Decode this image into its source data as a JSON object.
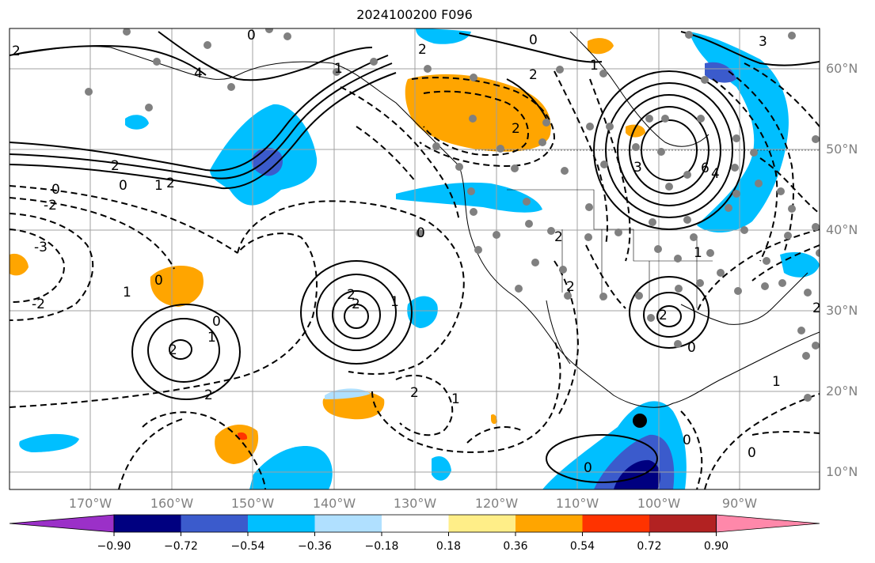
{
  "title": "2024100200 F096",
  "map": {
    "projection": "plate-carree",
    "lon_range": [
      -180,
      -82
    ],
    "lat_range": [
      8,
      65
    ],
    "lat_labels": [
      "60°N",
      "50°N",
      "40°N",
      "30°N",
      "20°N",
      "10°N"
    ],
    "lon_labels": [
      "170°W",
      "160°W",
      "150°W",
      "140°W",
      "130°W",
      "120°W",
      "110°W",
      "100°W",
      "90°W"
    ],
    "contour_labels": [
      "0",
      "2",
      "3",
      "2",
      "0",
      "1",
      "2",
      "4",
      "1",
      "-2",
      "-3",
      "-2",
      "2",
      "1",
      "0",
      "2",
      "0",
      "1",
      "2",
      "2",
      "0",
      "2",
      "1",
      "0",
      "2",
      "1",
      "6",
      "4",
      "3",
      "2",
      "1",
      "0",
      "2",
      "0",
      "2",
      "1",
      "2",
      "0",
      "0",
      "0",
      "2",
      "1",
      "2"
    ],
    "gridline_color": "#a0a0a0",
    "label_color": "#808080",
    "station_marker_color": "#808080",
    "highlight_marker": "storm-center-dot"
  },
  "colorbar": {
    "ticks": [
      "−0.90",
      "−0.72",
      "−0.54",
      "−0.36",
      "−0.18",
      "0.18",
      "0.36",
      "0.54",
      "0.72",
      "0.90"
    ],
    "colors": [
      "#9b30c8",
      "#000080",
      "#3b5bcc",
      "#00bfff",
      "#b0e0ff",
      "#ffffff",
      "#ffee88",
      "#ffa500",
      "#ff3300",
      "#b22222",
      "#ff88aa"
    ],
    "extend": "both"
  }
}
